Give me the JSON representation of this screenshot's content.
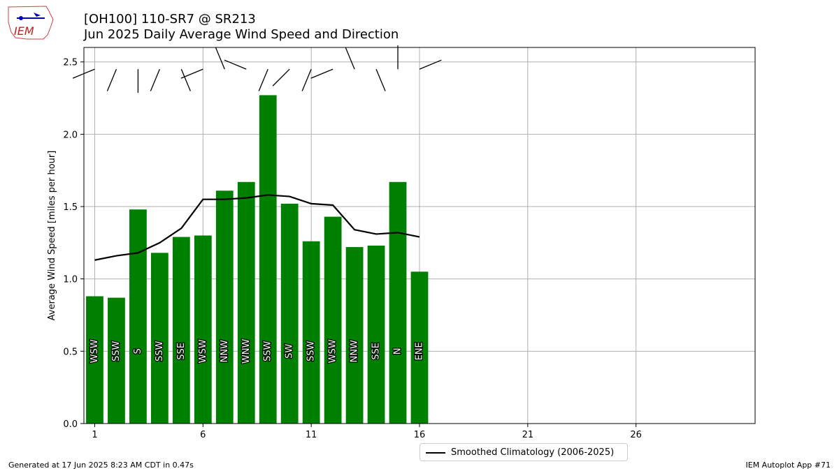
{
  "header": {
    "title_line1": "[OH100] 110-SR7 @ SR213",
    "title_line2": "Jun 2025 Daily Average Wind Speed and Direction"
  },
  "logo": {
    "text": "IEM"
  },
  "footer": {
    "left": "Generated at 17 Jun 2025 8:23 AM CDT in 0.47s",
    "right": "IEM Autoplot App #71"
  },
  "colors": {
    "bar": "#008000",
    "climatology": "#000000",
    "grid": "#b0b0b0"
  },
  "chart_data": {
    "type": "bar",
    "title": "",
    "xlabel": "",
    "ylabel": "Average Wind Speed [miles per hour]",
    "xlim": [
      0.5,
      31.5
    ],
    "ylim": [
      0,
      2.6
    ],
    "xticks": [
      1,
      6,
      11,
      16,
      21,
      26
    ],
    "yticks": [
      0.0,
      0.5,
      1.0,
      1.5,
      2.0,
      2.5
    ],
    "ytick_labels": [
      "0.0",
      "0.5",
      "1.0",
      "1.5",
      "2.0",
      "2.5"
    ],
    "grid": true,
    "legend_position": "bottom-center",
    "days": [
      1,
      2,
      3,
      4,
      5,
      6,
      7,
      8,
      9,
      10,
      11,
      12,
      13,
      14,
      15,
      16
    ],
    "series": [
      {
        "type": "bar",
        "values": [
          0.88,
          0.87,
          1.48,
          1.18,
          1.29,
          1.3,
          1.61,
          1.67,
          2.27,
          1.52,
          1.26,
          1.43,
          1.22,
          1.23,
          1.67,
          1.05
        ]
      },
      {
        "type": "line",
        "name": "Smoothed Climatology (2006-2025)",
        "values": [
          1.13,
          1.16,
          1.18,
          1.25,
          1.35,
          1.55,
          1.55,
          1.56,
          1.58,
          1.57,
          1.52,
          1.51,
          1.34,
          1.31,
          1.32,
          1.29
        ]
      }
    ],
    "direction_labels": [
      "WSW",
      "SSW",
      "S",
      "SSW",
      "SSE",
      "WSW",
      "NNW",
      "WNW",
      "SSW",
      "SW",
      "SSW",
      "WSW",
      "NNW",
      "SSE",
      "N",
      "ENE"
    ],
    "wind_directions_deg": [
      247.5,
      202.5,
      180,
      202.5,
      157.5,
      247.5,
      337.5,
      292.5,
      202.5,
      225,
      202.5,
      247.5,
      337.5,
      157.5,
      0,
      67.5
    ]
  }
}
